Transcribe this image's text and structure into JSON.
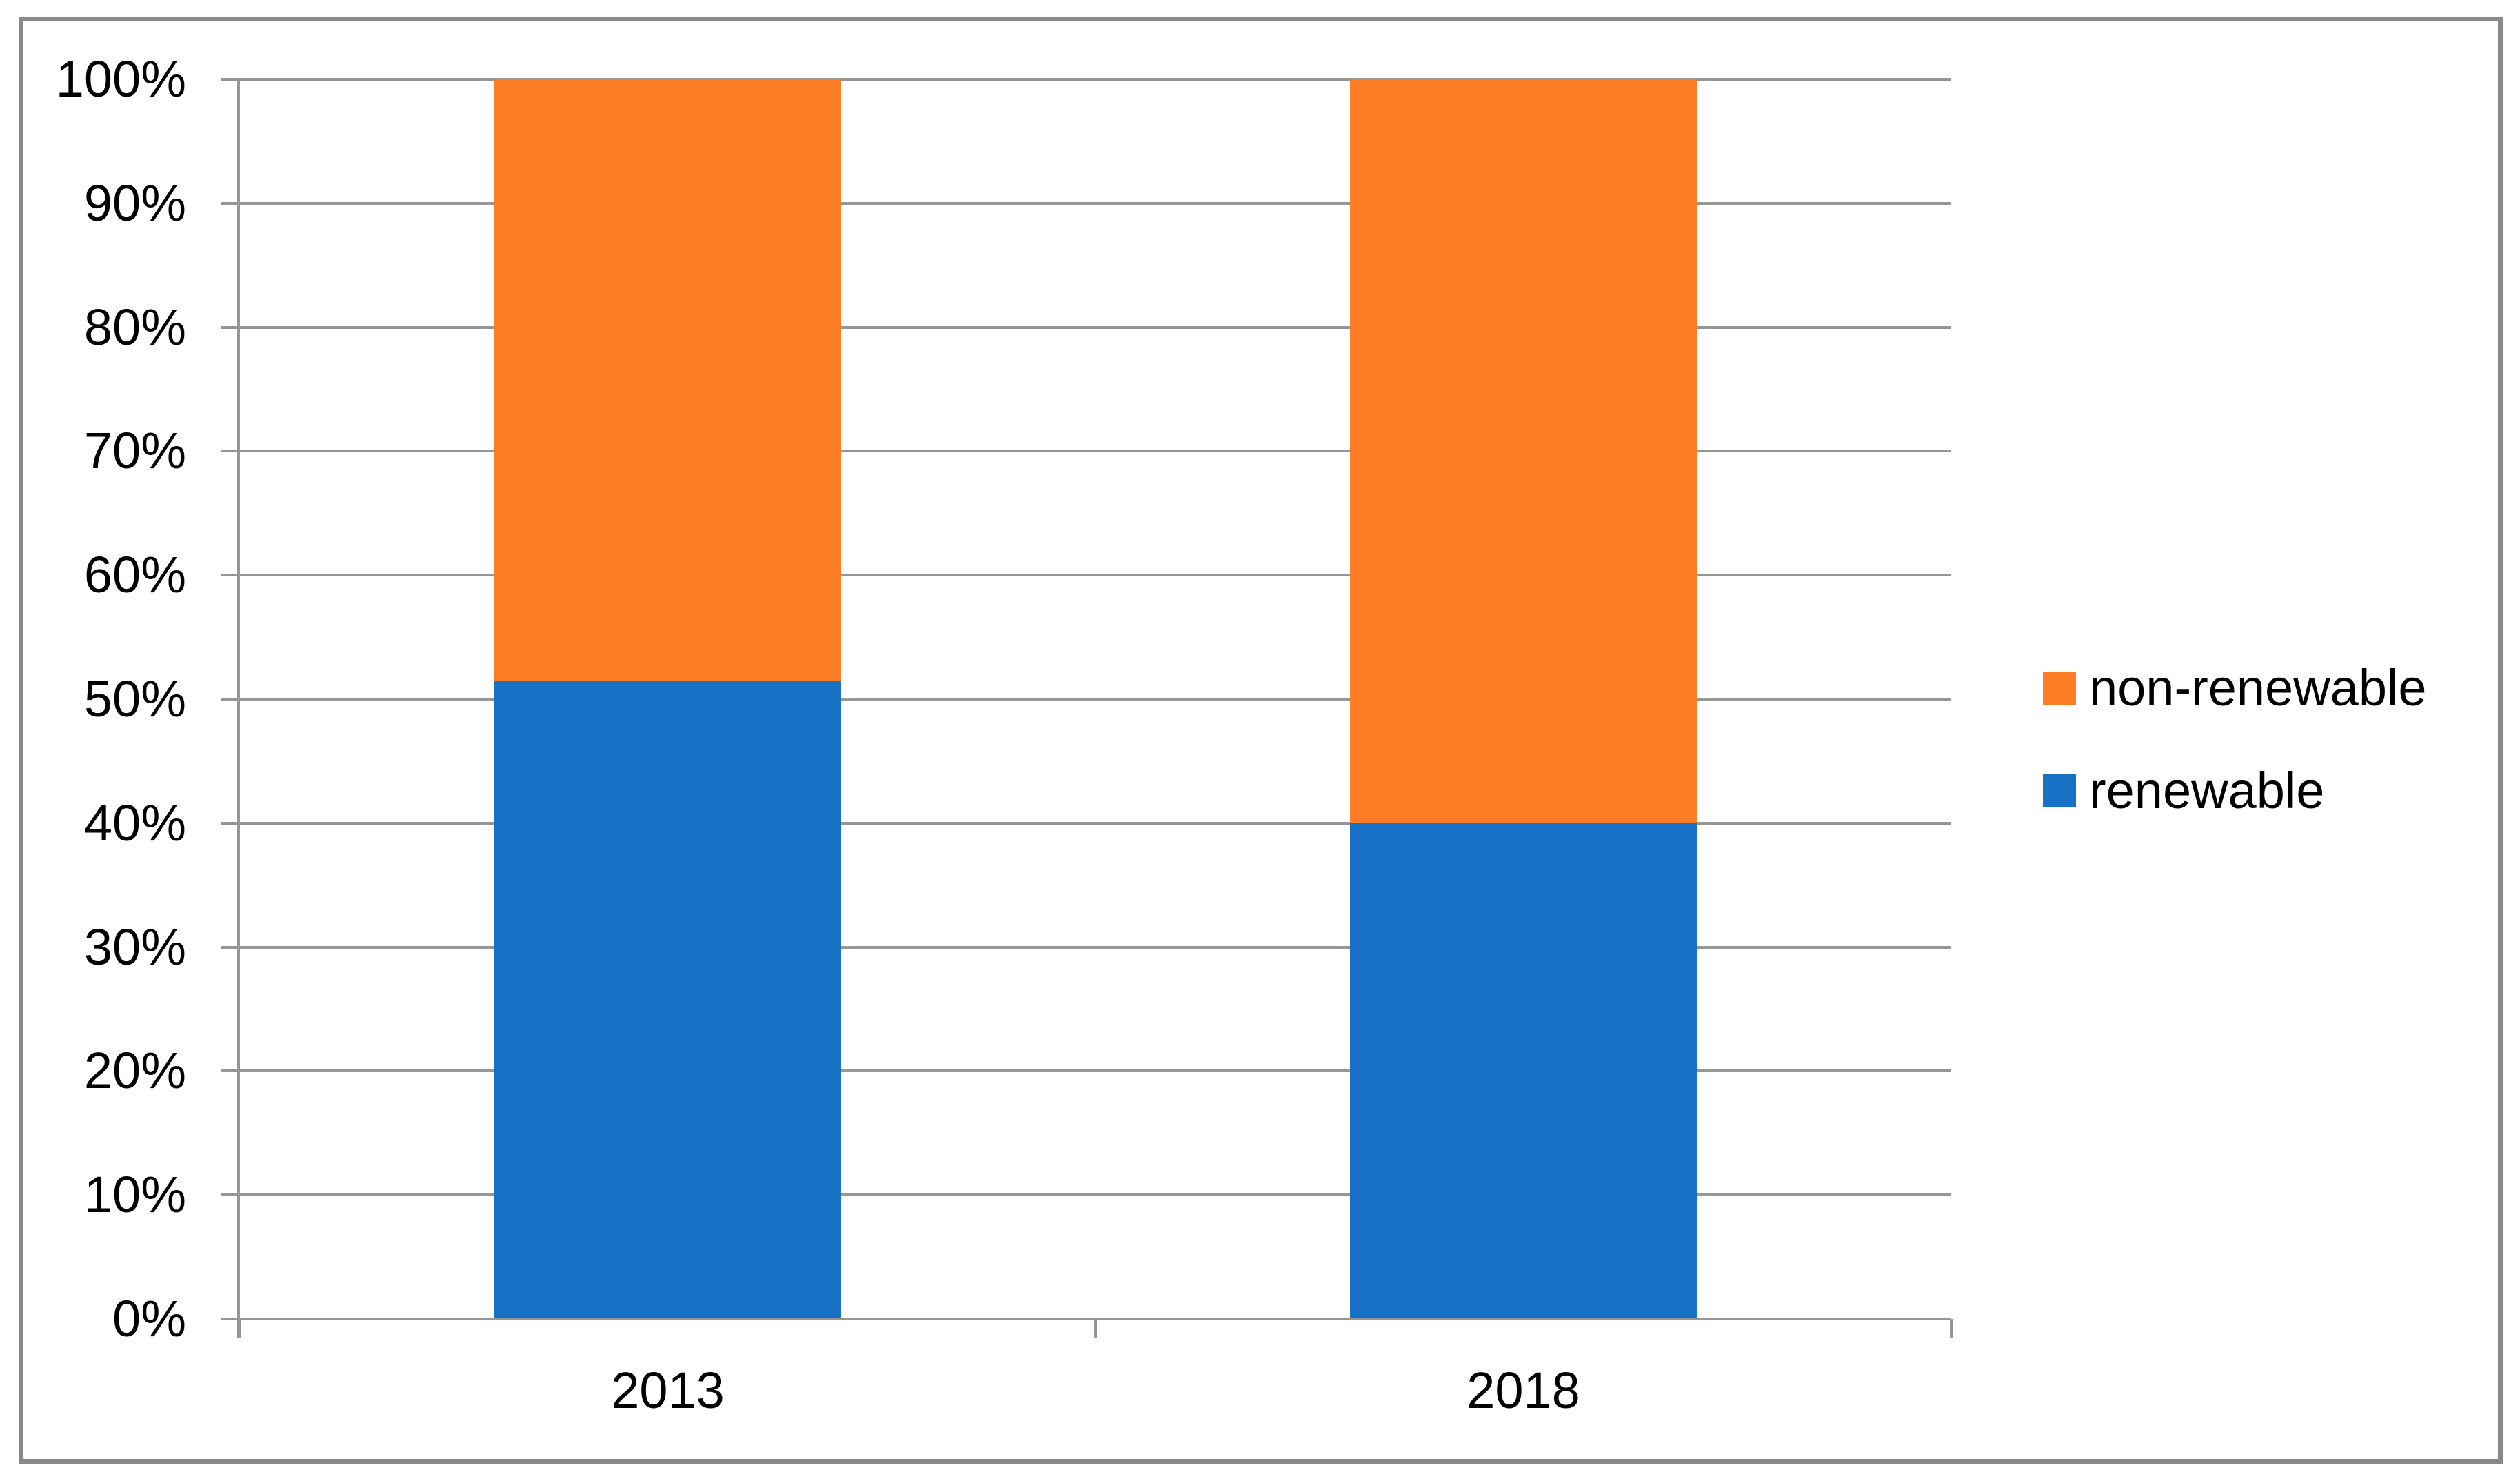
{
  "figure": {
    "background_color": "#ffffff",
    "border_color": "#898989"
  },
  "chart_data": {
    "type": "bar",
    "subtype": "stacked-100-percent-column",
    "title": "",
    "xlabel": "",
    "ylabel": "",
    "categories": [
      "2013",
      "2018"
    ],
    "series": [
      {
        "name": "renewable",
        "color": "#1772C6",
        "values": [
          51.5,
          40
        ]
      },
      {
        "name": "non-renewable",
        "color": "#FD7E26",
        "values": [
          48.5,
          60
        ]
      }
    ],
    "ylim": [
      0,
      100
    ],
    "y_ticks": [
      0,
      10,
      20,
      30,
      40,
      50,
      60,
      70,
      80,
      90,
      100
    ],
    "y_tick_labels": [
      "0%",
      "10%",
      "20%",
      "30%",
      "40%",
      "50%",
      "60%",
      "70%",
      "80%",
      "90%",
      "100%"
    ],
    "grid": true,
    "gridline_color": "#969696",
    "axis_color": "#969696",
    "text_color": "#000000",
    "legend": {
      "position": "right",
      "entries": [
        {
          "label": "non-renewable",
          "color": "#FD7E26"
        },
        {
          "label": "renewable",
          "color": "#1772C6"
        }
      ]
    }
  }
}
